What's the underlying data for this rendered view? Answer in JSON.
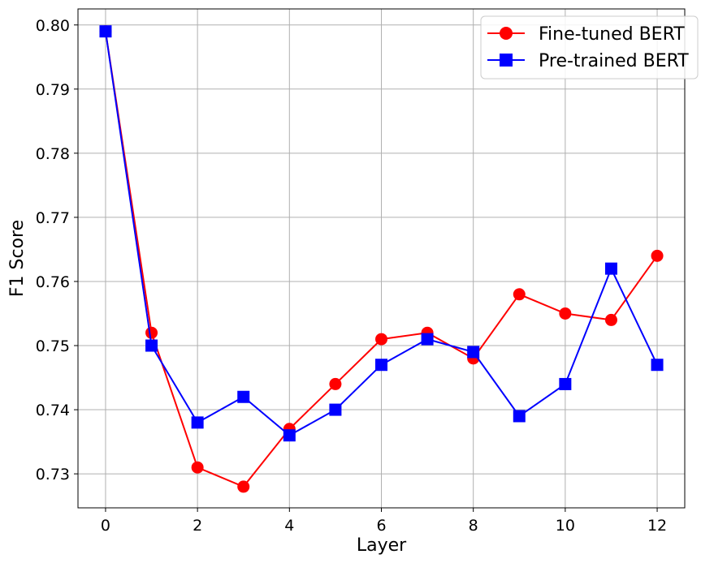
{
  "chart_data": {
    "type": "line",
    "title": "",
    "xlabel": "Layer",
    "ylabel": "F1 Score",
    "xlim": [
      -0.6,
      12.6
    ],
    "ylim": [
      0.7247,
      0.8025
    ],
    "xticks": [
      0,
      2,
      4,
      6,
      8,
      10,
      12
    ],
    "yticks": [
      0.73,
      0.74,
      0.75,
      0.76,
      0.77,
      0.78,
      0.79,
      0.8
    ],
    "xtick_labels": [
      "0",
      "2",
      "4",
      "6",
      "8",
      "10",
      "12"
    ],
    "ytick_labels": [
      "0.73",
      "0.74",
      "0.75",
      "0.76",
      "0.77",
      "0.78",
      "0.79",
      "0.80"
    ],
    "grid": true,
    "legend_position": "top-right",
    "x": [
      0,
      1,
      2,
      3,
      4,
      5,
      6,
      7,
      8,
      9,
      10,
      11,
      12
    ],
    "series": [
      {
        "name": "Fine-tuned BERT",
        "color": "#ff0000",
        "marker": "circle",
        "values": [
          0.799,
          0.752,
          0.731,
          0.728,
          0.737,
          0.744,
          0.751,
          0.752,
          0.748,
          0.758,
          0.755,
          0.754,
          0.764
        ]
      },
      {
        "name": "Pre-trained BERT",
        "color": "#0000ff",
        "marker": "square",
        "values": [
          0.799,
          0.75,
          0.738,
          0.742,
          0.736,
          0.74,
          0.747,
          0.751,
          0.749,
          0.739,
          0.744,
          0.762,
          0.747
        ]
      }
    ]
  }
}
